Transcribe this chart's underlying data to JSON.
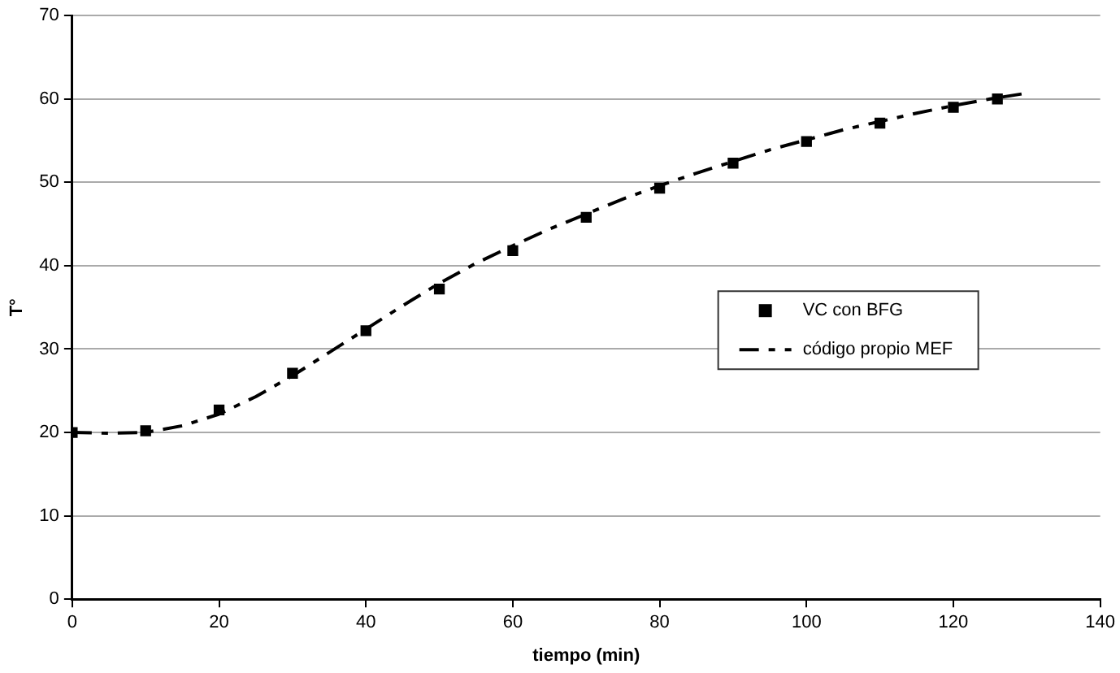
{
  "chart_data": {
    "type": "scatter",
    "xlabel": "tiempo (min)",
    "ylabel": "T°",
    "xlim": [
      0,
      140
    ],
    "xticks": [
      0,
      20,
      40,
      60,
      80,
      100,
      120,
      140
    ],
    "ylim": [
      0,
      70
    ],
    "yticks": [
      0,
      10,
      20,
      30,
      40,
      50,
      60,
      70
    ],
    "grid": "y",
    "legend": "right",
    "series": [
      {
        "name": "VC con BFG",
        "color": "#000000",
        "marker": "square",
        "x": [
          0,
          10,
          20,
          30,
          40,
          50,
          60,
          70,
          80,
          90,
          100,
          110,
          120,
          126
        ],
        "values": [
          20,
          20.2,
          22.7,
          27.1,
          32.2,
          37.2,
          41.8,
          45.8,
          49.3,
          52.3,
          54.9,
          57.1,
          59.0,
          60.0
        ]
      },
      {
        "name": "código propio MEF",
        "type": "line",
        "color": "#000000",
        "marker": "none",
        "line_style": "dashed",
        "x": [
          0,
          5,
          10,
          15,
          20,
          25,
          30,
          35,
          40,
          45,
          50,
          55,
          60,
          65,
          70,
          75,
          80,
          85,
          90,
          95,
          100,
          105,
          110,
          115,
          120,
          125,
          130
        ],
        "values": [
          20,
          19.9,
          20.0,
          20.8,
          22.2,
          24.3,
          26.8,
          29.6,
          32.4,
          35.2,
          37.9,
          40.3,
          42.4,
          44.4,
          46.2,
          48.0,
          49.6,
          51.1,
          52.5,
          53.9,
          55.1,
          56.3,
          57.3,
          58.3,
          59.2,
          60.0,
          60.7
        ]
      }
    ]
  }
}
